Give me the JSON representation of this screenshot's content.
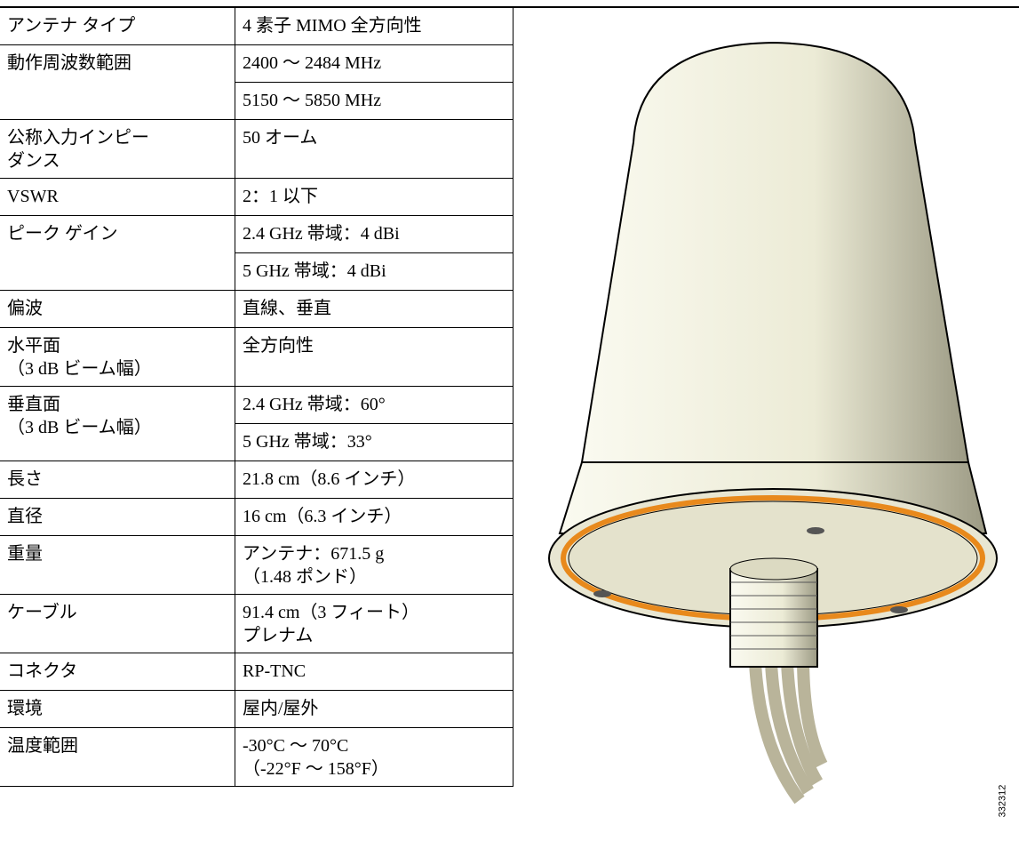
{
  "table": {
    "rows": [
      {
        "label": "アンテナ タイプ",
        "values": [
          "4 素子 MIMO 全方向性"
        ]
      },
      {
        "label": "動作周波数範囲",
        "values": [
          "2400 ～ 2484 MHz",
          "5150 ～ 5850 MHz"
        ]
      },
      {
        "label": "公称入力インピー\nダンス",
        "values": [
          "50 オーム"
        ]
      },
      {
        "label": "VSWR",
        "values": [
          "2：1 以下"
        ]
      },
      {
        "label": "ピーク ゲイン",
        "values": [
          "2.4 GHz 帯域：4 dBi",
          "5 GHz 帯域：4 dBi"
        ]
      },
      {
        "label": "偏波",
        "values": [
          "直線、垂直"
        ]
      },
      {
        "label": "水平面\n（3 dB ビーム幅）",
        "values": [
          "全方向性"
        ]
      },
      {
        "label": "垂直面\n（3 dB ビーム幅）",
        "values": [
          "2.4 GHz 帯域：60°",
          "5 GHz 帯域：33°"
        ]
      },
      {
        "label": "長さ",
        "values": [
          "21.8 cm（8.6 インチ）"
        ]
      },
      {
        "label": "直径",
        "values": [
          "16 cm（6.3 インチ）"
        ]
      },
      {
        "label": "重量",
        "values": [
          "アンテナ：671.5 g\n（1.48 ポンド）"
        ]
      },
      {
        "label": "ケーブル",
        "values": [
          "91.4 cm（3 フィート）\nプレナム"
        ]
      },
      {
        "label": "コネクタ",
        "values": [
          "RP-TNC"
        ]
      },
      {
        "label": "環境",
        "values": [
          "屋内/屋外"
        ]
      },
      {
        "label": "温度範囲",
        "values": [
          "-30°C ～ 70°C\n（-22°F ～ 158°F）"
        ]
      }
    ]
  },
  "figure": {
    "id": "332312"
  }
}
